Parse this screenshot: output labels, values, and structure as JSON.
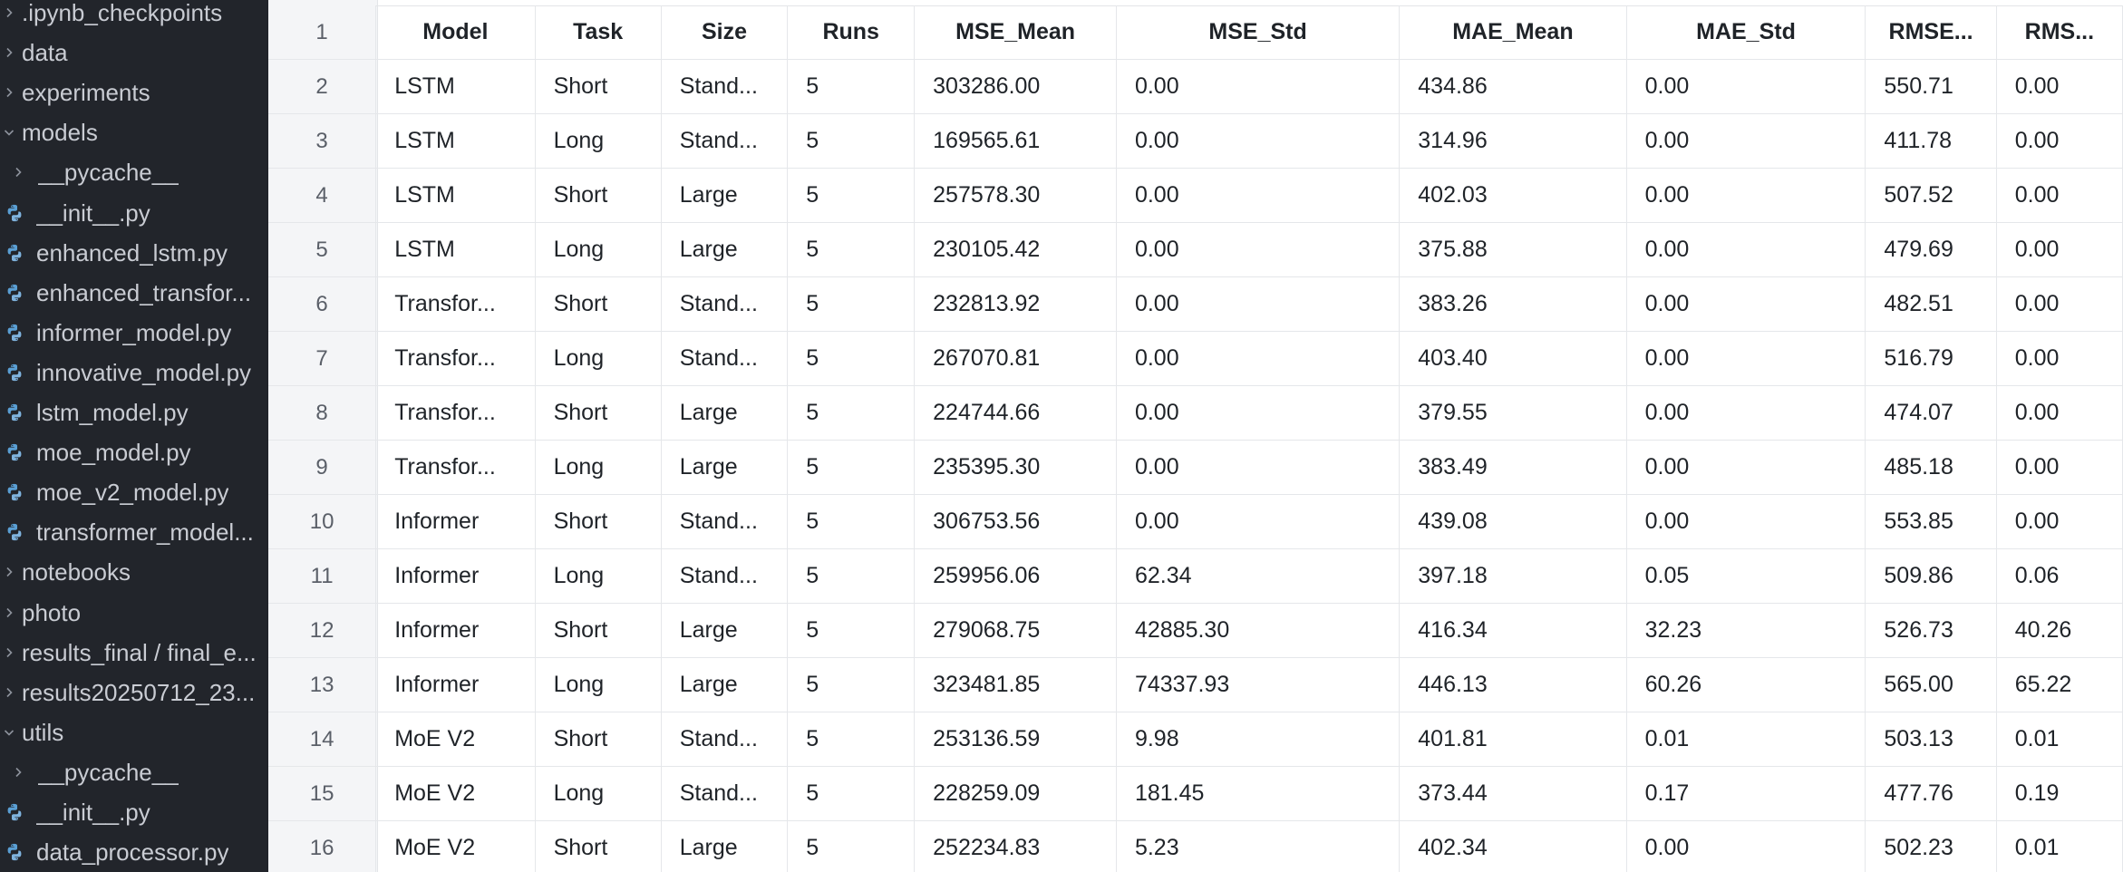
{
  "sidebar": {
    "items": [
      {
        "label": ".ipynb_checkpoints",
        "type": "folder",
        "expanded": false,
        "level": 0
      },
      {
        "label": "data",
        "type": "folder",
        "expanded": false,
        "level": 0
      },
      {
        "label": "experiments",
        "type": "folder",
        "expanded": false,
        "level": 0
      },
      {
        "label": "models",
        "type": "folder",
        "expanded": true,
        "level": 0
      },
      {
        "label": "__pycache__",
        "type": "folder",
        "expanded": false,
        "level": 1
      },
      {
        "label": "__init__.py",
        "type": "file",
        "level": 1
      },
      {
        "label": "enhanced_lstm.py",
        "type": "file",
        "level": 1
      },
      {
        "label": "enhanced_transfor...",
        "type": "file",
        "level": 1
      },
      {
        "label": "informer_model.py",
        "type": "file",
        "level": 1
      },
      {
        "label": "innovative_model.py",
        "type": "file",
        "level": 1
      },
      {
        "label": "lstm_model.py",
        "type": "file",
        "level": 1
      },
      {
        "label": "moe_model.py",
        "type": "file",
        "level": 1
      },
      {
        "label": "moe_v2_model.py",
        "type": "file",
        "level": 1
      },
      {
        "label": "transformer_model...",
        "type": "file",
        "level": 1
      },
      {
        "label": "notebooks",
        "type": "folder",
        "expanded": false,
        "level": 0
      },
      {
        "label": "photo",
        "type": "folder",
        "expanded": false,
        "level": 0
      },
      {
        "label": "results_final / final_e...",
        "type": "folder",
        "expanded": false,
        "level": 0
      },
      {
        "label": "results20250712_23...",
        "type": "folder",
        "expanded": false,
        "level": 0
      },
      {
        "label": "utils",
        "type": "folder",
        "expanded": true,
        "level": 0
      },
      {
        "label": "__pycache__",
        "type": "folder",
        "expanded": false,
        "level": 1
      },
      {
        "label": "__init__.py",
        "type": "file",
        "level": 1
      },
      {
        "label": "data_processor.py",
        "type": "file",
        "level": 1
      }
    ]
  },
  "table": {
    "row_numbers": [
      "1",
      "2",
      "3",
      "4",
      "5",
      "6",
      "7",
      "8",
      "9",
      "10",
      "11",
      "12",
      "13",
      "14",
      "15",
      "16"
    ],
    "headers": [
      "Model",
      "Task",
      "Size",
      "Runs",
      "MSE_Mean",
      "MSE_Std",
      "MAE_Mean",
      "MAE_Std",
      "RMSE...",
      "RMS..."
    ],
    "rows": [
      [
        "LSTM",
        "Short",
        "Stand...",
        "5",
        "303286.00",
        "0.00",
        "434.86",
        "0.00",
        "550.71",
        "0.00"
      ],
      [
        "LSTM",
        "Long",
        "Stand...",
        "5",
        "169565.61",
        "0.00",
        "314.96",
        "0.00",
        "411.78",
        "0.00"
      ],
      [
        "LSTM",
        "Short",
        "Large",
        "5",
        "257578.30",
        "0.00",
        "402.03",
        "0.00",
        "507.52",
        "0.00"
      ],
      [
        "LSTM",
        "Long",
        "Large",
        "5",
        "230105.42",
        "0.00",
        "375.88",
        "0.00",
        "479.69",
        "0.00"
      ],
      [
        "Transfor...",
        "Short",
        "Stand...",
        "5",
        "232813.92",
        "0.00",
        "383.26",
        "0.00",
        "482.51",
        "0.00"
      ],
      [
        "Transfor...",
        "Long",
        "Stand...",
        "5",
        "267070.81",
        "0.00",
        "403.40",
        "0.00",
        "516.79",
        "0.00"
      ],
      [
        "Transfor...",
        "Short",
        "Large",
        "5",
        "224744.66",
        "0.00",
        "379.55",
        "0.00",
        "474.07",
        "0.00"
      ],
      [
        "Transfor...",
        "Long",
        "Large",
        "5",
        "235395.30",
        "0.00",
        "383.49",
        "0.00",
        "485.18",
        "0.00"
      ],
      [
        "Informer",
        "Short",
        "Stand...",
        "5",
        "306753.56",
        "0.00",
        "439.08",
        "0.00",
        "553.85",
        "0.00"
      ],
      [
        "Informer",
        "Long",
        "Stand...",
        "5",
        "259956.06",
        "62.34",
        "397.18",
        "0.05",
        "509.86",
        "0.06"
      ],
      [
        "Informer",
        "Short",
        "Large",
        "5",
        "279068.75",
        "42885.30",
        "416.34",
        "32.23",
        "526.73",
        "40.26"
      ],
      [
        "Informer",
        "Long",
        "Large",
        "5",
        "323481.85",
        "74337.93",
        "446.13",
        "60.26",
        "565.00",
        "65.22"
      ],
      [
        "MoE V2",
        "Short",
        "Stand...",
        "5",
        "253136.59",
        "9.98",
        "401.81",
        "0.01",
        "503.13",
        "0.01"
      ],
      [
        "MoE V2",
        "Long",
        "Stand...",
        "5",
        "228259.09",
        "181.45",
        "373.44",
        "0.17",
        "477.76",
        "0.19"
      ],
      [
        "MoE V2",
        "Short",
        "Large",
        "5",
        "252234.83",
        "5.23",
        "402.34",
        "0.00",
        "502.23",
        "0.01"
      ]
    ]
  },
  "colors": {
    "sidebar_bg": "#22252b",
    "sidebar_text": "#c9ccd3",
    "python_icon": "#5a9fd4",
    "rownum_bg": "#f4f5f7",
    "grid_line": "#e5e7ea"
  }
}
